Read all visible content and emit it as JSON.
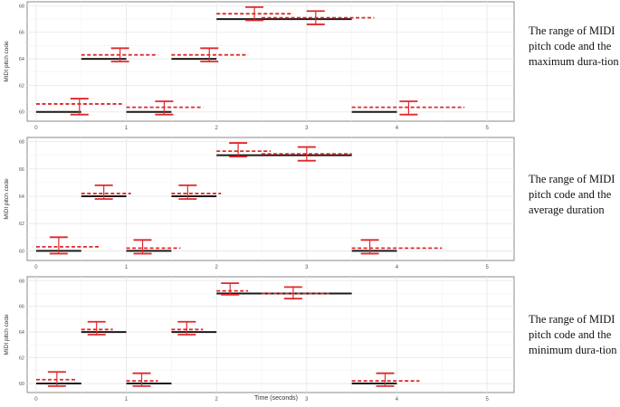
{
  "colors": {
    "reference": "#1a1a1a",
    "estimate": "#e0282b",
    "grid": "#e6e6e6",
    "panel_border": "#8a8a8a"
  },
  "chart_data": [
    {
      "type": "line",
      "description_label": "The range of MIDI pitch code and the maximum dura-tion",
      "ylabel": "MIDI pitch code",
      "xlabel": "",
      "xlim": [
        -0.1,
        5.3
      ],
      "ylim": [
        59.3,
        68.3
      ],
      "x_ticks": [
        0,
        1,
        2,
        3,
        4,
        5
      ],
      "y_ticks": [
        60,
        62,
        64,
        66,
        68
      ],
      "grid": true,
      "series": [
        {
          "role": "reference",
          "style": "solid-black",
          "segments": [
            {
              "x0": 0.0,
              "x1": 0.5,
              "y": 60
            },
            {
              "x0": 0.5,
              "x1": 1.0,
              "y": 64
            },
            {
              "x0": 1.0,
              "x1": 1.5,
              "y": 60
            },
            {
              "x0": 1.5,
              "x1": 2.0,
              "y": 64
            },
            {
              "x0": 2.0,
              "x1": 3.5,
              "y": 67
            },
            {
              "x0": 3.5,
              "x1": 4.0,
              "y": 60
            }
          ]
        },
        {
          "role": "estimate",
          "style": "dashed-red",
          "segments": [
            {
              "x0": 0.0,
              "x1": 0.95,
              "y": 60.6
            },
            {
              "x0": 0.5,
              "x1": 1.35,
              "y": 64.3
            },
            {
              "x0": 1.0,
              "x1": 1.85,
              "y": 60.35
            },
            {
              "x0": 1.5,
              "x1": 2.35,
              "y": 64.3
            },
            {
              "x0": 2.0,
              "x1": 2.85,
              "y": 67.4
            },
            {
              "x0": 2.5,
              "x1": 3.75,
              "y": 67.1
            },
            {
              "x0": 3.5,
              "x1": 4.75,
              "y": 60.35
            }
          ]
        }
      ],
      "error_bars": [
        {
          "x": 0.48,
          "center": 60.3,
          "low": 59.8,
          "high": 61.0
        },
        {
          "x": 0.93,
          "center": 64.2,
          "low": 63.8,
          "high": 64.8
        },
        {
          "x": 1.42,
          "center": 60.3,
          "low": 59.8,
          "high": 60.8
        },
        {
          "x": 1.92,
          "center": 64.2,
          "low": 63.8,
          "high": 64.8
        },
        {
          "x": 2.42,
          "center": 67.4,
          "low": 66.9,
          "high": 67.9
        },
        {
          "x": 3.1,
          "center": 67.1,
          "low": 66.6,
          "high": 67.6
        },
        {
          "x": 4.13,
          "center": 60.3,
          "low": 59.8,
          "high": 60.8
        }
      ]
    },
    {
      "type": "line",
      "description_label": "The range of MIDI pitch code and the average duration",
      "ylabel": "MIDI pitch code",
      "xlabel": "",
      "xlim": [
        -0.1,
        5.3
      ],
      "ylim": [
        59.3,
        68.3
      ],
      "x_ticks": [
        0,
        1,
        2,
        3,
        4,
        5
      ],
      "y_ticks": [
        60,
        62,
        64,
        66,
        68
      ],
      "grid": true,
      "series": [
        {
          "role": "reference",
          "style": "solid-black",
          "segments": [
            {
              "x0": 0.0,
              "x1": 0.5,
              "y": 60
            },
            {
              "x0": 0.5,
              "x1": 1.0,
              "y": 64
            },
            {
              "x0": 1.0,
              "x1": 1.5,
              "y": 60
            },
            {
              "x0": 1.5,
              "x1": 2.0,
              "y": 64
            },
            {
              "x0": 2.0,
              "x1": 3.5,
              "y": 67
            },
            {
              "x0": 3.5,
              "x1": 4.0,
              "y": 60
            }
          ]
        },
        {
          "role": "estimate",
          "style": "dashed-red",
          "segments": [
            {
              "x0": 0.0,
              "x1": 0.7,
              "y": 60.3
            },
            {
              "x0": 0.5,
              "x1": 1.05,
              "y": 64.2
            },
            {
              "x0": 1.0,
              "x1": 1.6,
              "y": 60.2
            },
            {
              "x0": 1.5,
              "x1": 2.05,
              "y": 64.2
            },
            {
              "x0": 2.0,
              "x1": 2.6,
              "y": 67.3
            },
            {
              "x0": 2.5,
              "x1": 3.5,
              "y": 67.1
            },
            {
              "x0": 3.5,
              "x1": 4.5,
              "y": 60.2
            }
          ]
        }
      ],
      "error_bars": [
        {
          "x": 0.25,
          "center": 60.3,
          "low": 59.8,
          "high": 61.0
        },
        {
          "x": 0.75,
          "center": 64.2,
          "low": 63.8,
          "high": 64.8
        },
        {
          "x": 1.18,
          "center": 60.3,
          "low": 59.8,
          "high": 60.8
        },
        {
          "x": 1.68,
          "center": 64.2,
          "low": 63.8,
          "high": 64.8
        },
        {
          "x": 2.24,
          "center": 67.4,
          "low": 66.9,
          "high": 67.9
        },
        {
          "x": 3.0,
          "center": 67.1,
          "low": 66.6,
          "high": 67.6
        },
        {
          "x": 3.7,
          "center": 60.3,
          "low": 59.8,
          "high": 60.8
        }
      ]
    },
    {
      "type": "line",
      "description_label": "The range of MIDI pitch code and the minimum dura-tion",
      "ylabel": "MIDI pitch code",
      "xlabel": "Time (seconds)",
      "xlim": [
        -0.1,
        5.3
      ],
      "ylim": [
        59.3,
        68.3
      ],
      "x_ticks": [
        0,
        1,
        2,
        3,
        4,
        5
      ],
      "y_ticks": [
        60,
        62,
        64,
        66,
        68
      ],
      "grid": true,
      "series": [
        {
          "role": "reference",
          "style": "solid-black",
          "segments": [
            {
              "x0": 0.0,
              "x1": 0.5,
              "y": 60
            },
            {
              "x0": 0.5,
              "x1": 1.0,
              "y": 64
            },
            {
              "x0": 1.0,
              "x1": 1.5,
              "y": 60
            },
            {
              "x0": 1.5,
              "x1": 2.0,
              "y": 64
            },
            {
              "x0": 2.0,
              "x1": 3.5,
              "y": 67
            },
            {
              "x0": 3.5,
              "x1": 4.0,
              "y": 60
            }
          ]
        },
        {
          "role": "estimate",
          "style": "dashed-red",
          "segments": [
            {
              "x0": 0.0,
              "x1": 0.45,
              "y": 60.3
            },
            {
              "x0": 0.5,
              "x1": 0.85,
              "y": 64.2
            },
            {
              "x0": 1.0,
              "x1": 1.35,
              "y": 60.2
            },
            {
              "x0": 1.5,
              "x1": 1.85,
              "y": 64.2
            },
            {
              "x0": 2.0,
              "x1": 2.35,
              "y": 67.2
            },
            {
              "x0": 2.5,
              "x1": 3.25,
              "y": 67.0
            },
            {
              "x0": 3.5,
              "x1": 4.25,
              "y": 60.2
            }
          ]
        }
      ],
      "error_bars": [
        {
          "x": 0.23,
          "center": 60.3,
          "low": 59.8,
          "high": 60.9
        },
        {
          "x": 0.67,
          "center": 64.2,
          "low": 63.8,
          "high": 64.8
        },
        {
          "x": 1.17,
          "center": 60.3,
          "low": 59.8,
          "high": 60.8
        },
        {
          "x": 1.67,
          "center": 64.2,
          "low": 63.8,
          "high": 64.8
        },
        {
          "x": 2.15,
          "center": 67.3,
          "low": 66.9,
          "high": 67.8
        },
        {
          "x": 2.85,
          "center": 67.0,
          "low": 66.6,
          "high": 67.5
        },
        {
          "x": 3.87,
          "center": 60.3,
          "low": 59.8,
          "high": 60.8
        }
      ]
    }
  ]
}
